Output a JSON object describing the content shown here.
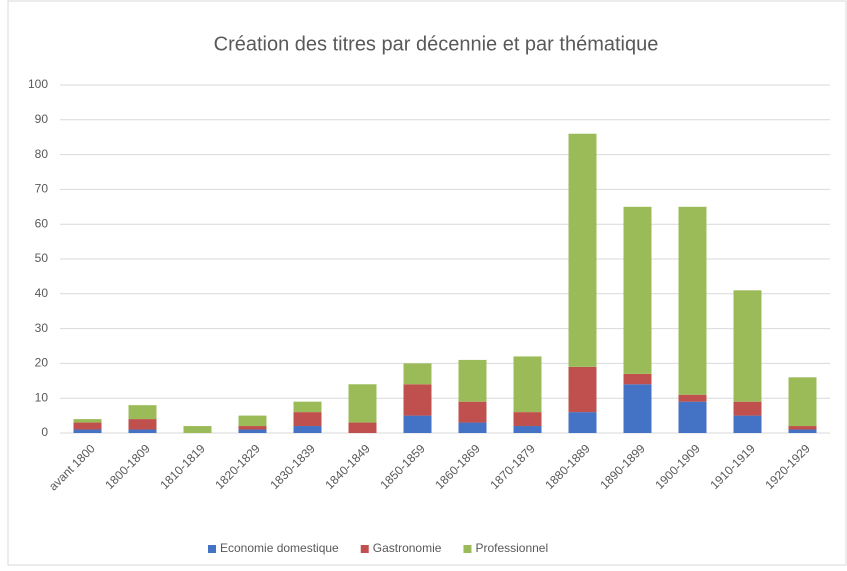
{
  "chart_data": {
    "type": "stacked_bar",
    "title": "Création des titres par décennie et par thématique",
    "categories": [
      "avant 1800",
      "1800-1809",
      "1810-1819",
      "1820-1829",
      "1830-1839",
      "1840-1849",
      "1850-1859",
      "1860-1869",
      "1870-1879",
      "1880-1889",
      "1890-1899",
      "1900-1909",
      "1910-1919",
      "1920-1929"
    ],
    "series": [
      {
        "name": "Economie domestique",
        "color": "#4472c4",
        "values": [
          1,
          1,
          0,
          1,
          2,
          0,
          5,
          3,
          2,
          6,
          14,
          9,
          5,
          1
        ]
      },
      {
        "name": "Gastronomie",
        "color": "#c0504d",
        "values": [
          2,
          3,
          0,
          1,
          4,
          3,
          9,
          6,
          4,
          13,
          3,
          2,
          4,
          1
        ]
      },
      {
        "name": "Professionnel",
        "color": "#9bbb59",
        "values": [
          1,
          4,
          2,
          3,
          3,
          11,
          6,
          12,
          16,
          67,
          48,
          54,
          32,
          14
        ]
      }
    ],
    "ylim": [
      0,
      100
    ],
    "yticks": [
      0,
      10,
      20,
      30,
      40,
      50,
      60,
      70,
      80,
      90,
      100
    ],
    "grid": true,
    "legend": "bottom"
  }
}
